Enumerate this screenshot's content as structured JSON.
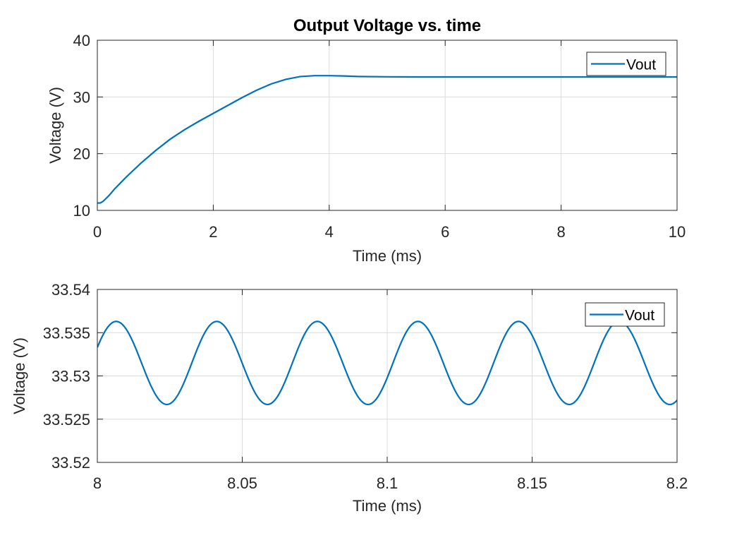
{
  "chart_data": [
    {
      "type": "line",
      "title": "Output Voltage vs. time",
      "xlabel": "Time (ms)",
      "ylabel": "Voltage (V)",
      "xlim": [
        0,
        10
      ],
      "ylim": [
        10,
        40
      ],
      "xticks": [
        0,
        2,
        4,
        6,
        8,
        10
      ],
      "xtick_labels": [
        "0",
        "2",
        "4",
        "6",
        "8",
        "10"
      ],
      "yticks": [
        10,
        20,
        30,
        40
      ],
      "ytick_labels": [
        "10",
        "20",
        "30",
        "40"
      ],
      "grid": true,
      "legend": {
        "position": "top-right",
        "entries": [
          "Vout"
        ]
      },
      "series": [
        {
          "name": "Vout",
          "color": "#0072BD",
          "x": [
            0,
            0.05,
            0.1,
            0.2,
            0.3,
            0.5,
            0.75,
            1.0,
            1.25,
            1.5,
            1.75,
            2.0,
            2.25,
            2.5,
            2.75,
            3.0,
            3.25,
            3.5,
            3.75,
            4.0,
            4.25,
            4.5,
            5.0,
            5.5,
            6.0,
            7.0,
            8.0,
            9.0,
            10.0
          ],
          "y": [
            11.3,
            11.3,
            11.6,
            12.6,
            13.8,
            15.9,
            18.3,
            20.5,
            22.5,
            24.2,
            25.7,
            27.1,
            28.5,
            29.9,
            31.2,
            32.3,
            33.1,
            33.6,
            33.75,
            33.75,
            33.7,
            33.6,
            33.55,
            33.53,
            33.53,
            33.53,
            33.53,
            33.53,
            33.53
          ]
        }
      ]
    },
    {
      "type": "line",
      "title": "",
      "xlabel": "Time (ms)",
      "ylabel": "Voltage (V)",
      "xlim": [
        8,
        8.2
      ],
      "ylim": [
        33.52,
        33.54
      ],
      "xticks": [
        8,
        8.05,
        8.1,
        8.15,
        8.2
      ],
      "xtick_labels": [
        "8",
        "8.05",
        "8.1",
        "8.15",
        "8.2"
      ],
      "yticks": [
        33.52,
        33.525,
        33.53,
        33.535,
        33.54
      ],
      "ytick_labels": [
        "33.52",
        "33.525",
        "33.53",
        "33.535",
        "33.54"
      ],
      "grid": true,
      "legend": {
        "position": "top-right",
        "entries": [
          "Vout"
        ]
      },
      "series": [
        {
          "name": "Vout",
          "color": "#0072BD",
          "waveform": "periodic ripple",
          "period_ms": 0.0347,
          "max": 33.5363,
          "min": 33.5267,
          "first_peak_ms": 8.0065,
          "first_trough_ms": 8.024,
          "start_value": 33.5343
        }
      ]
    }
  ]
}
